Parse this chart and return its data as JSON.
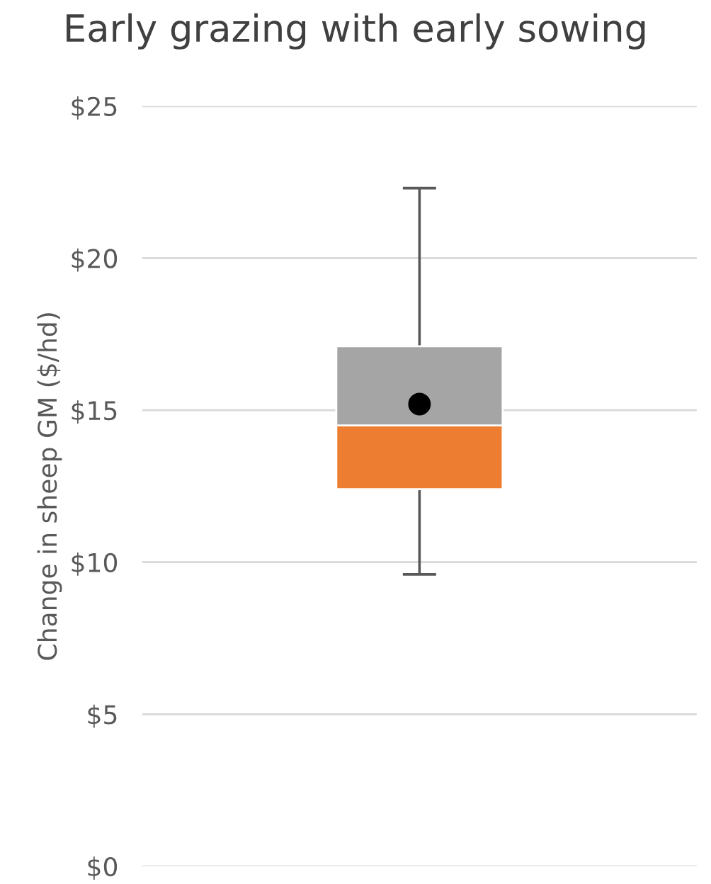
{
  "chart_data": {
    "type": "box",
    "title": "Early grazing with early sowing",
    "ylabel": "Change in sheep GM ($/hd)",
    "categories": [
      null
    ],
    "series": [
      {
        "boxes": [
          {
            "low": 9.6,
            "q1": 12.4,
            "median": 14.5,
            "q3": 17.1,
            "high": 22.3,
            "mean": 15.2
          }
        ],
        "color": "#ed7d31"
      }
    ],
    "ylim": [
      0,
      25
    ],
    "yticks": [
      {
        "value": 0,
        "label": "$0"
      },
      {
        "value": 5,
        "label": "$5"
      },
      {
        "value": 10,
        "label": "$10"
      },
      {
        "value": 15,
        "label": "$15"
      },
      {
        "value": 20,
        "label": "$20"
      },
      {
        "value": 25,
        "label": "$25"
      }
    ],
    "grid": "y",
    "marker": "circle"
  }
}
